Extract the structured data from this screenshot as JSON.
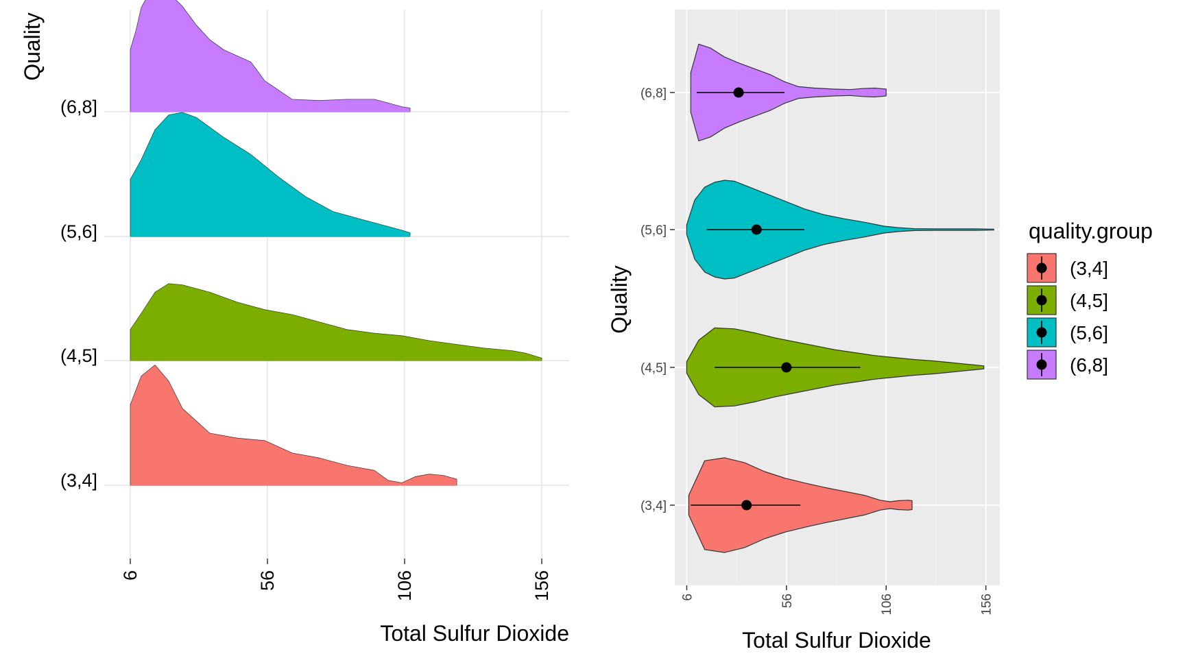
{
  "chart_data": [
    {
      "type": "ridgeline",
      "xlabel": "Total Sulfur Dioxide",
      "ylabel": "Quality",
      "xlim": [
        6,
        166
      ],
      "x_ticks": [
        6,
        56,
        106,
        156
      ],
      "x_tick_labels": [
        "6",
        "56",
        "106",
        "156"
      ],
      "grid": true,
      "legend": "none",
      "categories": [
        "(3,4]",
        "(4,5]",
        "(5,6]",
        "(6,8]"
      ],
      "series": [
        {
          "name": "(3,4]",
          "color": "#F8766D",
          "x": [
            6,
            10,
            15,
            20,
            25,
            35,
            45,
            55,
            65,
            75,
            85,
            95,
            100,
            105,
            110,
            115,
            120,
            125
          ],
          "y": [
            0.65,
            0.88,
            0.97,
            0.84,
            0.62,
            0.42,
            0.38,
            0.36,
            0.26,
            0.22,
            0.16,
            0.12,
            0.04,
            0.02,
            0.07,
            0.09,
            0.08,
            0.05
          ]
        },
        {
          "name": "(4,5]",
          "color": "#7CAE00",
          "x": [
            6,
            10,
            15,
            20,
            25,
            35,
            45,
            55,
            65,
            75,
            85,
            95,
            105,
            115,
            125,
            135,
            145,
            150,
            156
          ],
          "y": [
            0.25,
            0.38,
            0.55,
            0.62,
            0.61,
            0.55,
            0.47,
            0.41,
            0.37,
            0.31,
            0.25,
            0.22,
            0.2,
            0.16,
            0.13,
            0.1,
            0.08,
            0.06,
            0.02
          ]
        },
        {
          "name": "(5,6]",
          "color": "#00BFC4",
          "x": [
            6,
            10,
            15,
            20,
            25,
            30,
            40,
            50,
            60,
            70,
            80,
            90,
            100,
            105,
            108
          ],
          "y": [
            0.46,
            0.62,
            0.86,
            0.98,
            1.0,
            0.96,
            0.8,
            0.66,
            0.48,
            0.32,
            0.2,
            0.14,
            0.08,
            0.05,
            0.03
          ]
        },
        {
          "name": "(6,8]",
          "color": "#C77CFF",
          "x": [
            6,
            8,
            10,
            13,
            15,
            20,
            25,
            30,
            35,
            40,
            50,
            55,
            65,
            75,
            85,
            95,
            100,
            105,
            108
          ],
          "y": [
            0.5,
            0.65,
            0.84,
            0.96,
            0.98,
            0.96,
            0.85,
            0.7,
            0.58,
            0.5,
            0.4,
            0.25,
            0.1,
            0.09,
            0.1,
            0.1,
            0.07,
            0.04,
            0.03
          ]
        }
      ]
    },
    {
      "type": "violin",
      "xlabel": "Total Sulfur Dioxide",
      "ylabel": "Quality",
      "xlim": [
        0,
        163
      ],
      "x_ticks": [
        6,
        56,
        106,
        156
      ],
      "x_tick_labels": [
        "6",
        "56",
        "106",
        "156"
      ],
      "grid": true,
      "legend": "right",
      "legend_title": "quality.group",
      "categories": [
        "(3,4]",
        "(4,5]",
        "(5,6]",
        "(6,8]"
      ],
      "series": [
        {
          "name": "(3,4]",
          "color": "#F8766D",
          "mean": 36,
          "range": [
            8,
            63
          ],
          "vmin": 7,
          "vmax": 119,
          "x": [
            7,
            15,
            25,
            35,
            45,
            55,
            65,
            75,
            85,
            95,
            103,
            108,
            112,
            117,
            119
          ],
          "half_width": [
            0.2,
            0.9,
            0.96,
            0.86,
            0.68,
            0.55,
            0.45,
            0.36,
            0.28,
            0.2,
            0.1,
            0.07,
            0.09,
            0.1,
            0.09
          ]
        },
        {
          "name": "(4,5]",
          "color": "#7CAE00",
          "mean": 56,
          "range": [
            20,
            93
          ],
          "vmin": 6,
          "vmax": 155,
          "x": [
            6,
            12,
            20,
            30,
            40,
            50,
            60,
            70,
            80,
            90,
            100,
            110,
            120,
            130,
            140,
            150,
            155
          ],
          "half_width": [
            0.12,
            0.55,
            0.8,
            0.78,
            0.7,
            0.6,
            0.52,
            0.44,
            0.36,
            0.3,
            0.24,
            0.2,
            0.16,
            0.13,
            0.09,
            0.05,
            0.03
          ]
        },
        {
          "name": "(5,6]",
          "color": "#00BFC4",
          "mean": 41,
          "range": [
            16,
            65
          ],
          "vmin": 6,
          "vmax": 160,
          "x": [
            6,
            10,
            15,
            20,
            25,
            30,
            35,
            45,
            55,
            65,
            75,
            85,
            95,
            105,
            112,
            120,
            130,
            140,
            150,
            160
          ],
          "half_width": [
            0.1,
            0.6,
            0.86,
            0.96,
            1.0,
            0.98,
            0.9,
            0.74,
            0.58,
            0.42,
            0.3,
            0.22,
            0.15,
            0.07,
            0.04,
            0.02,
            0.015,
            0.015,
            0.015,
            0.01
          ]
        },
        {
          "name": "(6,8]",
          "color": "#C77CFF",
          "mean": 32,
          "range": [
            11,
            55
          ],
          "vmin": 8,
          "vmax": 106,
          "x": [
            8,
            12,
            18,
            25,
            32,
            40,
            48,
            55,
            62,
            70,
            80,
            88,
            94,
            100,
            103,
            106
          ],
          "half_width": [
            0.4,
            0.98,
            0.9,
            0.72,
            0.6,
            0.48,
            0.36,
            0.22,
            0.12,
            0.09,
            0.07,
            0.06,
            0.08,
            0.09,
            0.08,
            0.07
          ]
        }
      ]
    }
  ]
}
